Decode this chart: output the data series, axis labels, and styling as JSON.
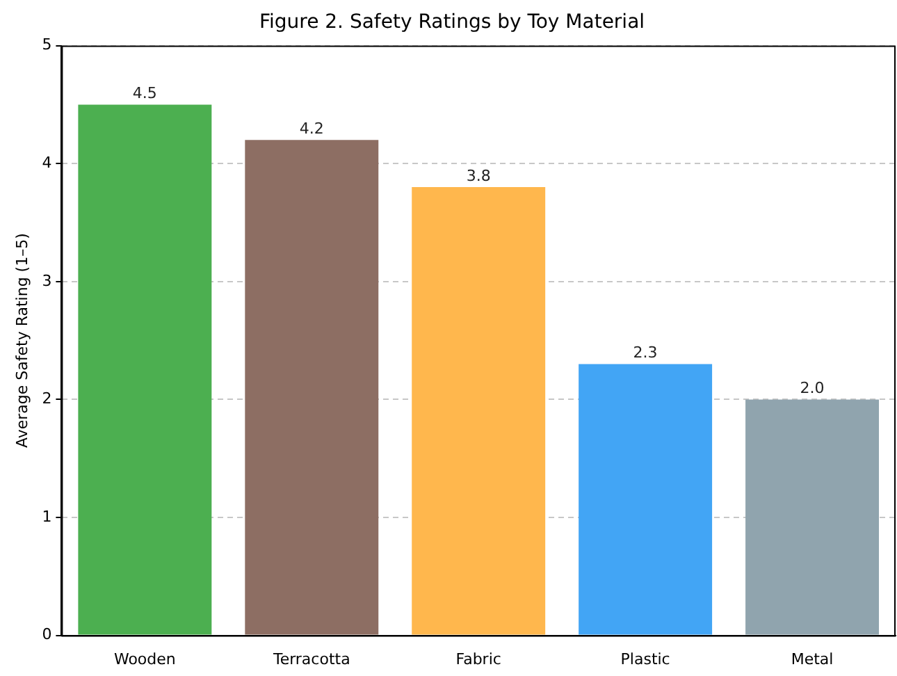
{
  "chart_data": {
    "type": "bar",
    "title": "Figure 2. Safety Ratings by Toy Material",
    "ylabel": "Average Safety Rating (1–5)",
    "categories": [
      "Wooden",
      "Terracotta",
      "Fabric",
      "Plastic",
      "Metal"
    ],
    "values": [
      4.5,
      4.2,
      3.8,
      2.3,
      2.0
    ],
    "colors": [
      "#4caf50",
      "#8d6e63",
      "#ffb74d",
      "#42a5f5",
      "#90a4ae"
    ],
    "value_labels": [
      "4.5",
      "4.2",
      "3.8",
      "2.3",
      "2.0"
    ],
    "ylim": [
      0,
      5
    ],
    "yticks": [
      0,
      1,
      2,
      3,
      4,
      5
    ],
    "grid": "y",
    "legend": false
  }
}
